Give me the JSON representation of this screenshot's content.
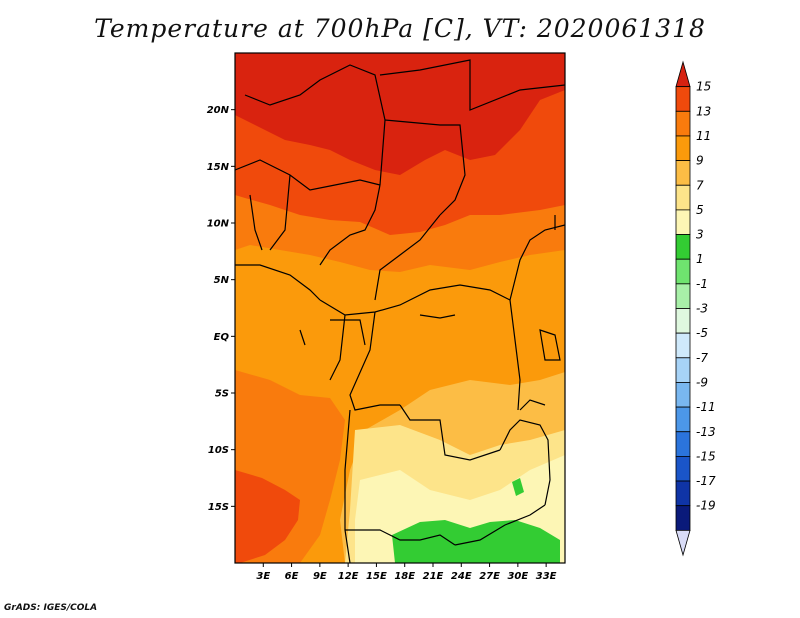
{
  "title": "Temperature at 700hPa [C], VT: 2020061318",
  "credit": "GrADS: IGES/COLA",
  "map": {
    "lat_ticks": [
      "20N",
      "15N",
      "10N",
      "5N",
      "EQ",
      "5S",
      "10S",
      "15S"
    ],
    "lat_values": [
      20,
      15,
      10,
      5,
      0,
      -5,
      -10,
      -15
    ],
    "lon_ticks": [
      "3E",
      "6E",
      "9E",
      "12E",
      "15E",
      "18E",
      "21E",
      "24E",
      "27E",
      "30E",
      "33E"
    ],
    "lon_values": [
      3,
      6,
      9,
      12,
      15,
      18,
      21,
      24,
      27,
      30,
      33
    ],
    "lon_range": [
      0,
      35
    ],
    "lat_range": [
      -20,
      25
    ],
    "zones": [
      {
        "value": 14,
        "color": "#d9230f"
      },
      {
        "value": 12,
        "color": "#f04a0c"
      },
      {
        "value": 10,
        "color": "#f97b0d"
      },
      {
        "value": 8,
        "color": "#fb9a0b"
      },
      {
        "value": 6,
        "color": "#fcbd45"
      },
      {
        "value": 4,
        "color": "#fde48a"
      },
      {
        "value": 2,
        "color": "#fdf6b5"
      },
      {
        "value": 0,
        "color": "#33cc33"
      }
    ]
  },
  "colorbar": {
    "labels": [
      "15",
      "13",
      "11",
      "9",
      "7",
      "5",
      "3",
      "1",
      "-1",
      "-3",
      "-5",
      "-7",
      "-9",
      "-11",
      "-13",
      "-15",
      "-17",
      "-19"
    ],
    "colors": [
      "#d62211",
      "#f04a0c",
      "#f97b0d",
      "#fb9a0b",
      "#fcbd45",
      "#fde48a",
      "#fdf6b5",
      "#33cc33",
      "#6fe36f",
      "#a8f0a8",
      "#dff8df",
      "#cfe9fb",
      "#a7d3f7",
      "#79b7f0",
      "#4c97e8",
      "#2b74dc",
      "#1a55c8",
      "#0f34a6",
      "#0a1a7a",
      "#d9dcf7"
    ]
  }
}
